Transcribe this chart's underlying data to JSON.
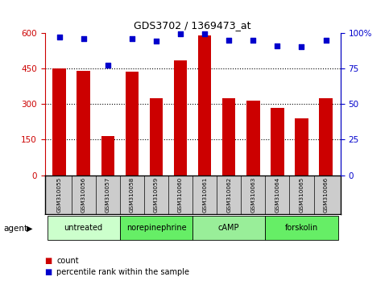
{
  "title": "GDS3702 / 1369473_at",
  "samples": [
    "GSM310055",
    "GSM310056",
    "GSM310057",
    "GSM310058",
    "GSM310059",
    "GSM310060",
    "GSM310061",
    "GSM310062",
    "GSM310063",
    "GSM310064",
    "GSM310065",
    "GSM310066"
  ],
  "counts": [
    450,
    440,
    165,
    435,
    325,
    485,
    590,
    325,
    315,
    285,
    240,
    325
  ],
  "percentiles": [
    97,
    96,
    77,
    96,
    94,
    99,
    99,
    95,
    95,
    91,
    90,
    95
  ],
  "agents": [
    {
      "label": "untreated",
      "start": 0,
      "end": 3,
      "color": "#ccffcc"
    },
    {
      "label": "norepinephrine",
      "start": 3,
      "end": 6,
      "color": "#66ee66"
    },
    {
      "label": "cAMP",
      "start": 6,
      "end": 9,
      "color": "#99ee99"
    },
    {
      "label": "forskolin",
      "start": 9,
      "end": 12,
      "color": "#66ee66"
    }
  ],
  "bar_color": "#cc0000",
  "dot_color": "#0000cc",
  "ylim_left": [
    0,
    600
  ],
  "ylim_right": [
    0,
    100
  ],
  "yticks_left": [
    0,
    150,
    300,
    450,
    600
  ],
  "yticks_right": [
    0,
    25,
    50,
    75,
    100
  ],
  "sample_bg_color": "#cccccc",
  "agent_label": "agent",
  "legend_count": "count",
  "legend_percentile": "percentile rank within the sample",
  "bar_width": 0.55
}
